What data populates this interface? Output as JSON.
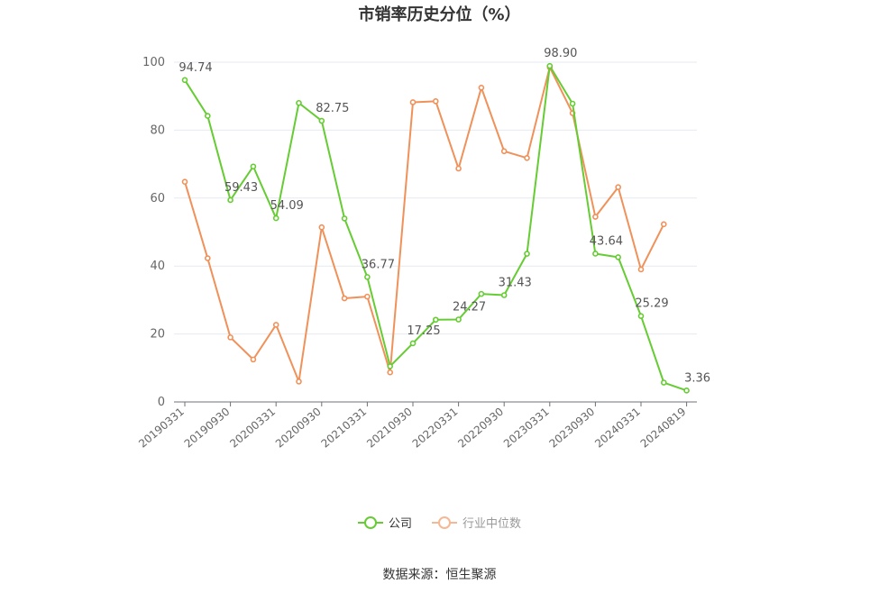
{
  "chart_data": {
    "type": "line",
    "title": "市销率历史分位（%）",
    "xlabel": "",
    "ylabel": "",
    "ylim": [
      0,
      100
    ],
    "yticks": [
      0,
      20,
      40,
      60,
      80,
      100
    ],
    "x_tick_labels": [
      "20190331",
      "20190930",
      "20200331",
      "20200930",
      "20210331",
      "20210930",
      "20220331",
      "20220930",
      "20230331",
      "20230930",
      "20240331",
      "20240819"
    ],
    "x": [
      "20190331",
      "20190630",
      "20190930",
      "20191231",
      "20200331",
      "20200630",
      "20200930",
      "20201231",
      "20210331",
      "20210630",
      "20210930",
      "20211231",
      "20220331",
      "20220630",
      "20220930",
      "20221231",
      "20230331",
      "20230630",
      "20230930",
      "20231231",
      "20240331",
      "20240630",
      "20240819"
    ],
    "series": [
      {
        "name": "公司",
        "color": "#66cc33",
        "values": [
          94.74,
          84.2,
          59.43,
          69.3,
          54.09,
          88.0,
          82.75,
          54.0,
          36.77,
          10.5,
          17.25,
          24.2,
          24.27,
          31.8,
          31.43,
          43.6,
          98.9,
          87.8,
          43.64,
          42.6,
          25.29,
          5.7,
          3.36
        ],
        "labels": {
          "0": "94.74",
          "2": "59.43",
          "4": "54.09",
          "6": "82.75",
          "8": "36.77",
          "10": "17.25",
          "12": "24.27",
          "14": "31.43",
          "16": "98.90",
          "18": "43.64",
          "20": "25.29",
          "22": "3.36"
        }
      },
      {
        "name": "行业中位数",
        "color": "#f0915a",
        "values": [
          64.8,
          42.3,
          19.0,
          12.5,
          22.7,
          6.0,
          51.4,
          30.5,
          31.0,
          8.7,
          88.2,
          88.5,
          68.7,
          92.5,
          73.8,
          71.8,
          98.5,
          85.0,
          54.5,
          63.2,
          39.0,
          52.3,
          null
        ]
      }
    ],
    "legend_position": "bottom",
    "grid": true
  },
  "source_text": "数据来源：恒生聚源"
}
